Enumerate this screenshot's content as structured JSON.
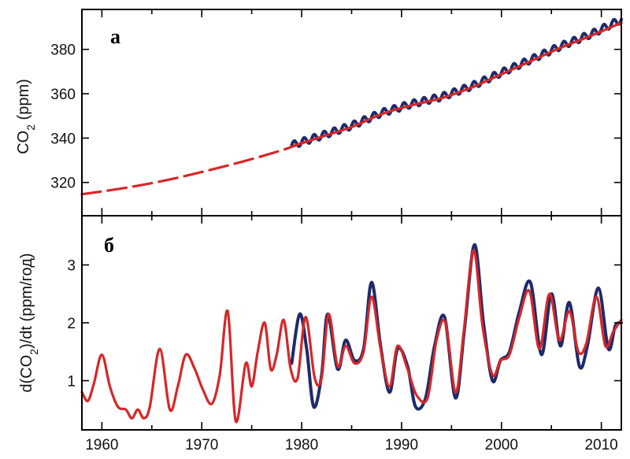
{
  "chart_data": [
    {
      "type": "line",
      "panel_label": "а",
      "ylabel_main": "CO",
      "ylabel_sub": "2",
      "ylabel_unit": " (ppm)",
      "xlim": [
        1958,
        2012
      ],
      "ylim": [
        305,
        398
      ],
      "yticks": [
        320,
        340,
        360,
        380
      ],
      "series": [
        {
          "color": "#1f2a6b",
          "style": "solid",
          "seasonal_amplitude": 1.6,
          "x": [
            1979,
            1982,
            1985,
            1988,
            1991,
            1994,
            1997,
            2000,
            2003,
            2006,
            2009,
            2012
          ],
          "y": [
            336.8,
            341.1,
            345.6,
            351.4,
            355.4,
            358.6,
            363.4,
            369.5,
            375.5,
            381.6,
            386.9,
            393.5
          ]
        },
        {
          "color": "#d62728",
          "style": "solid",
          "x": [
            1979,
            1982,
            1985,
            1988,
            1991,
            1994,
            1997,
            2000,
            2003,
            2006,
            2009,
            2012
          ],
          "y": [
            336.2,
            340.6,
            345.0,
            350.8,
            354.8,
            358.0,
            362.8,
            368.8,
            374.8,
            380.9,
            386.2,
            392.0
          ]
        },
        {
          "color": "#d62728",
          "style": "dashed",
          "x": [
            1958,
            1962,
            1966,
            1970,
            1974,
            1978,
            1980
          ],
          "y": [
            314.7,
            317.3,
            320.6,
            324.7,
            329.3,
            334.5,
            337.8
          ]
        }
      ]
    },
    {
      "type": "line",
      "panel_label": "б",
      "ylabel_pre": "d(CO",
      "ylabel_sub": "2",
      "ylabel_post": ")/dt (ppm/год)",
      "xlim": [
        1958,
        2012
      ],
      "ylim": [
        0.15,
        3.85
      ],
      "yticks": [
        1,
        2,
        3
      ],
      "xticks": [
        1960,
        1970,
        1980,
        1990,
        2000,
        2010
      ],
      "series": [
        {
          "color": "#1f2a6b",
          "style": "solid",
          "x": [
            1979,
            1979.8,
            1980.5,
            1981.2,
            1982,
            1982.6,
            1983.6,
            1984.4,
            1985.3,
            1986.2,
            1987,
            1987.9,
            1988.8,
            1989.6,
            1990.6,
            1991.4,
            1992.4,
            1993.3,
            1994.3,
            1995.4,
            1996.3,
            1997.3,
            1998.2,
            1999.1,
            1999.9,
            2000.8,
            2001.8,
            2002.9,
            2004,
            2005,
            2005.9,
            2006.8,
            2007.8,
            2008.6,
            2009.7,
            2010.7,
            2011.4,
            2012
          ],
          "y": [
            1.3,
            2.15,
            1.55,
            0.55,
            1.1,
            2.15,
            1.2,
            1.7,
            1.35,
            1.55,
            2.7,
            1.6,
            0.8,
            1.55,
            1.25,
            0.55,
            0.7,
            1.6,
            2.1,
            0.7,
            1.9,
            3.35,
            2.0,
            1.0,
            1.35,
            1.5,
            2.2,
            2.7,
            1.45,
            2.5,
            1.6,
            2.35,
            1.25,
            1.6,
            2.6,
            1.55,
            1.95,
            2.0
          ]
        },
        {
          "color": "#d62728",
          "style": "solid",
          "x": [
            1958,
            1958.6,
            1959.2,
            1960,
            1960.8,
            1961.6,
            1962.4,
            1963,
            1963.6,
            1964.2,
            1964.8,
            1965.8,
            1966.8,
            1967.6,
            1968.4,
            1969.3,
            1970.1,
            1971,
            1971.8,
            1972.6,
            1973.4,
            1974.4,
            1975,
            1975.6,
            1976.3,
            1976.9,
            1977.5,
            1978.2,
            1978.9,
            1979.6,
            1980.4,
            1981.3,
            1982,
            1982.7,
            1983.6,
            1984.4,
            1985.3,
            1986.2,
            1987,
            1987.9,
            1988.8,
            1989.6,
            1990.6,
            1991.5,
            1992.6,
            1993.5,
            1994.4,
            1995.4,
            1996.2,
            1997.2,
            1998.1,
            1999.1,
            1999.9,
            2000.8,
            2001.8,
            2002.8,
            2003.8,
            2004.8,
            2005.8,
            2006.8,
            2007.7,
            2008.5,
            2009.5,
            2010.4,
            2011.2,
            2012
          ],
          "y": [
            0.8,
            0.65,
            0.95,
            1.45,
            0.9,
            0.55,
            0.5,
            0.35,
            0.5,
            0.35,
            0.55,
            1.55,
            0.5,
            0.9,
            1.45,
            1.2,
            0.85,
            0.6,
            1.1,
            2.2,
            0.3,
            1.3,
            0.9,
            1.5,
            2.0,
            1.2,
            1.45,
            2.05,
            1.2,
            1.05,
            2.1,
            1.05,
            1.05,
            2.15,
            1.25,
            1.6,
            1.3,
            1.5,
            2.45,
            1.55,
            0.9,
            1.6,
            1.2,
            0.75,
            0.7,
            1.7,
            2.0,
            0.8,
            1.8,
            3.25,
            1.95,
            1.1,
            1.35,
            1.45,
            2.1,
            2.55,
            1.55,
            2.5,
            1.7,
            2.2,
            1.5,
            1.65,
            2.45,
            1.6,
            1.85,
            2.05
          ]
        }
      ]
    }
  ]
}
